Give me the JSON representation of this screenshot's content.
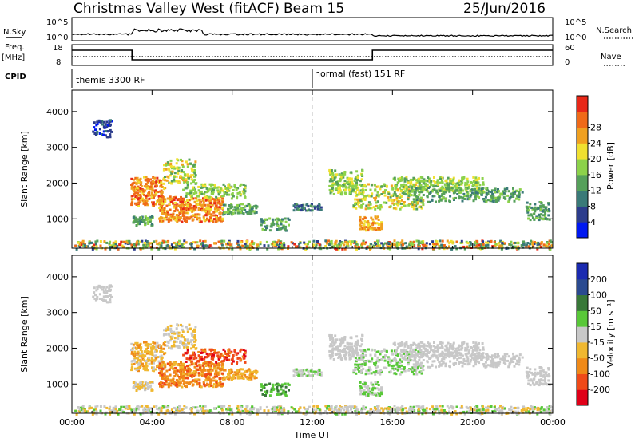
{
  "header": {
    "title": "Christmas Valley West (fitACF)",
    "beam": "Beam 15",
    "date": "25/Jun/2016"
  },
  "status_panels": {
    "nsky": {
      "label": "N.Sky",
      "ticks": [
        "10^5",
        "10^0"
      ]
    },
    "nsearch": {
      "label": "N.Search",
      "ticks": [
        "10^5",
        "10^0"
      ]
    },
    "freq": {
      "label_line1": "Freq.",
      "label_line2": "[MHz]",
      "ticks": [
        "18",
        "8"
      ]
    },
    "nave": {
      "label": "Nave",
      "ticks": [
        "60",
        "0"
      ]
    },
    "cpid": {
      "label": "CPID",
      "modes": [
        {
          "start_hour": 0,
          "end_hour": 12,
          "text": "themis 3300 RF"
        },
        {
          "start_hour": 12,
          "end_hour": 24,
          "text": "normal (fast) 151 RF"
        }
      ]
    }
  },
  "chart_data": [
    {
      "type": "heatmap",
      "name": "power",
      "ylabel": "Slant Range [km]",
      "yticks": [
        1000,
        2000,
        3000,
        4000
      ],
      "ylim": [
        180,
        4600
      ],
      "colorbar": {
        "label": "Power [dB]",
        "ticks": [
          "4",
          "8",
          "12",
          "16",
          "20",
          "24",
          "28"
        ],
        "range": [
          0,
          32
        ]
      }
    },
    {
      "type": "heatmap",
      "name": "velocity",
      "ylabel": "Slant Range [km]",
      "yticks": [
        1000,
        2000,
        3000,
        4000
      ],
      "ylim": [
        180,
        4600
      ],
      "colorbar": {
        "label": "Velocity [m s⁻¹]",
        "ticks": [
          "-200",
          "-100",
          "-50",
          "-15",
          "15",
          "50",
          "100",
          "200"
        ]
      }
    }
  ],
  "xaxis": {
    "label": "Time UT",
    "ticks": [
      "00:00",
      "04:00",
      "08:00",
      "12:00",
      "16:00",
      "20:00",
      "00:00"
    ],
    "range_hours": [
      0,
      24
    ]
  },
  "colors": {
    "power_scale": [
      "#0018f0",
      "#2c3c8c",
      "#3a7a78",
      "#55a05a",
      "#8cd24a",
      "#f0e030",
      "#f0a020",
      "#f06a18",
      "#e82818"
    ],
    "velocity_scale": [
      "#e00018",
      "#f04a18",
      "#f08a18",
      "#f0b830",
      "#c8c8c8",
      "#58c838",
      "#387838",
      "#2a4a90",
      "#1a2ab0"
    ]
  }
}
